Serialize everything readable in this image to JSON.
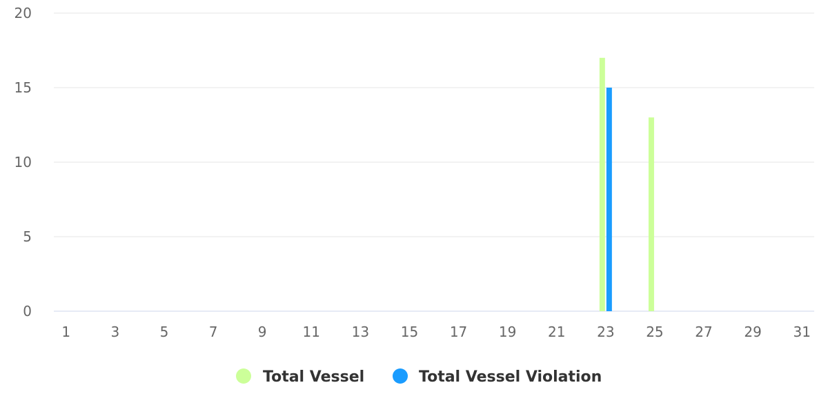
{
  "chart_data": {
    "type": "bar",
    "title": "",
    "xlabel": "",
    "ylabel": "",
    "x": [
      1,
      2,
      3,
      4,
      5,
      6,
      7,
      8,
      9,
      10,
      11,
      12,
      13,
      14,
      15,
      16,
      17,
      18,
      19,
      20,
      21,
      22,
      23,
      24,
      25,
      26,
      27,
      28,
      29,
      30,
      31
    ],
    "x_tick_labels": [
      "1",
      "3",
      "5",
      "7",
      "9",
      "11",
      "13",
      "15",
      "17",
      "19",
      "21",
      "23",
      "25",
      "27",
      "29",
      "31"
    ],
    "ylim": [
      0,
      20
    ],
    "y_ticks": [
      0,
      5,
      10,
      15,
      20
    ],
    "grid": true,
    "legend_position": "bottom-center",
    "series": [
      {
        "name": "Total Vessel",
        "color": "#ccff99",
        "values": [
          0,
          0,
          0,
          0,
          0,
          0,
          0,
          0,
          0,
          0,
          0,
          0,
          0,
          0,
          0,
          0,
          0,
          0,
          0,
          0,
          0,
          0,
          17,
          0,
          13,
          0,
          0,
          0,
          0,
          0,
          0
        ]
      },
      {
        "name": "Total Vessel Violation",
        "color": "#1a9cff",
        "values": [
          0,
          0,
          0,
          0,
          0,
          0,
          0,
          0,
          0,
          0,
          0,
          0,
          0,
          0,
          0,
          0,
          0,
          0,
          0,
          0,
          0,
          0,
          15,
          0,
          0,
          0,
          0,
          0,
          0,
          0,
          0
        ]
      }
    ]
  }
}
